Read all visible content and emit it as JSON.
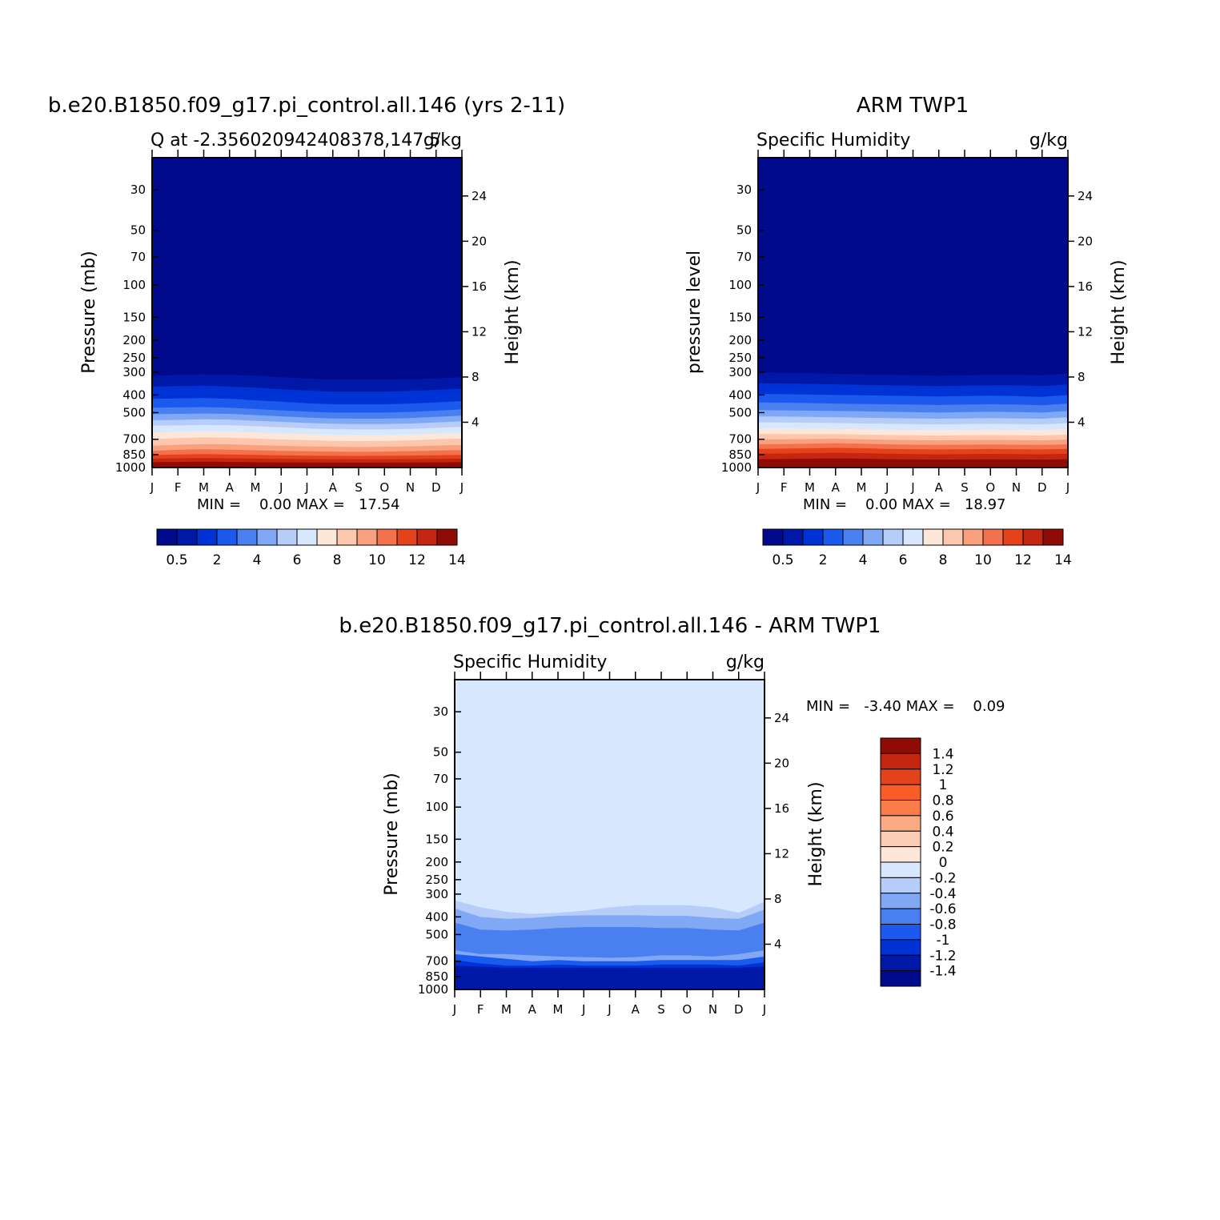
{
  "figure": {
    "pressure_axis_ticks": [
      30,
      50,
      70,
      100,
      150,
      200,
      250,
      300,
      400,
      500,
      700,
      850,
      1000
    ],
    "height_axis_ticks": [
      4,
      8,
      12,
      16,
      20,
      24
    ],
    "month_labels": [
      "J",
      "F",
      "M",
      "A",
      "M",
      "J",
      "J",
      "A",
      "S",
      "O",
      "N",
      "D",
      "J"
    ],
    "height_axis_label": "Height (km)"
  },
  "panels": [
    {
      "title": "b.e20.B1850.f09_g17.pi_control.all.146 (yrs 2-11)",
      "left_label": "Q at -2.356020942408378,147.5",
      "right_label": "g/kg",
      "ylabel": "Pressure (mb)",
      "stats_text": "MIN =    0.00 MAX =   17.54",
      "colorbar_labels": [
        "0.5",
        "2",
        "4",
        "6",
        "8",
        "10",
        "12",
        "14"
      ]
    },
    {
      "title": "ARM TWP1",
      "left_label": "Specific Humidity",
      "right_label": "g/kg",
      "ylabel": "pressure level",
      "stats_text": "MIN =    0.00 MAX =   18.97",
      "colorbar_labels": [
        "0.5",
        "2",
        "4",
        "6",
        "8",
        "10",
        "12",
        "14"
      ]
    },
    {
      "title": "b.e20.B1850.f09_g17.pi_control.all.146 - ARM TWP1",
      "left_label": "Specific Humidity",
      "right_label": "g/kg",
      "ylabel": "Pressure (mb)",
      "stats_text": "MIN =   -3.40 MAX =    0.09",
      "colorbar_labels": [
        "1.4",
        "1.2",
        "1",
        "0.8",
        "0.6",
        "0.4",
        "0.2",
        "0",
        "-0.2",
        "-0.4",
        "-0.6",
        "-0.8",
        "-1",
        "-1.2",
        "-1.4"
      ]
    }
  ],
  "colors": {
    "humidity_fill": [
      "#000a8b",
      "#0018a8",
      "#0033d6",
      "#1b5aec",
      "#4a7ff0",
      "#80a8f5",
      "#b6cdfa",
      "#d6e7fe",
      "#fde7d8",
      "#fcc7ad",
      "#f9a07f",
      "#f4714d",
      "#e4421b",
      "#c42612",
      "#8f0b06"
    ],
    "diff_fill": [
      "#8f0b06",
      "#c42612",
      "#e4421b",
      "#f95c25",
      "#fa7c49",
      "#fcaa84",
      "#fccdb5",
      "#fde7d8",
      "#d6e7fe",
      "#b6cdfa",
      "#80a8f5",
      "#4a7ff0",
      "#1b5aec",
      "#0033d6",
      "#0018a8",
      "#000a8b"
    ]
  },
  "chart_data": [
    {
      "type": "heatmap",
      "title": "b.e20.B1850.f09_g17.pi_control.all.146 (yrs 2-11)",
      "variable": "Q at -2.356020942408378,147.5",
      "units": "g/kg",
      "x": [
        "J",
        "F",
        "M",
        "A",
        "M",
        "J",
        "J",
        "A",
        "S",
        "O",
        "N",
        "D",
        "J"
      ],
      "ylabel": "Pressure (mb)",
      "y_right_label": "Height (km)",
      "ylim": [
        1000,
        20
      ],
      "y_scale": "log",
      "contour_levels": [
        0.5,
        1,
        2,
        3,
        4,
        5,
        6,
        7,
        8,
        9,
        10,
        11,
        12,
        13,
        14
      ],
      "min": 0.0,
      "max": 17.54,
      "contour_pressure_mb": [
        [
          315,
          310,
          308,
          310,
          314,
          320,
          325,
          330,
          330,
          330,
          328,
          325,
          320
        ],
        [
          360,
          358,
          356,
          360,
          365,
          372,
          378,
          384,
          384,
          384,
          380,
          375,
          370
        ],
        [
          420,
          418,
          416,
          420,
          428,
          436,
          444,
          450,
          450,
          450,
          446,
          440,
          432
        ],
        [
          470,
          468,
          466,
          470,
          478,
          486,
          494,
          500,
          500,
          500,
          496,
          488,
          480
        ],
        [
          510,
          508,
          506,
          508,
          516,
          524,
          532,
          538,
          540,
          540,
          536,
          528,
          520
        ],
        [
          550,
          548,
          544,
          546,
          554,
          562,
          570,
          576,
          578,
          578,
          574,
          566,
          558
        ],
        [
          590,
          588,
          584,
          586,
          594,
          602,
          610,
          616,
          618,
          618,
          614,
          606,
          598
        ],
        [
          640,
          636,
          632,
          634,
          642,
          650,
          656,
          662,
          664,
          664,
          660,
          652,
          646
        ],
        [
          700,
          690,
          684,
          686,
          694,
          702,
          708,
          714,
          716,
          714,
          710,
          700,
          694
        ],
        [
          760,
          750,
          744,
          746,
          754,
          760,
          766,
          770,
          772,
          770,
          766,
          758,
          752
        ],
        [
          810,
          800,
          795,
          798,
          805,
          810,
          814,
          818,
          820,
          818,
          814,
          808,
          802
        ],
        [
          855,
          848,
          845,
          848,
          853,
          857,
          860,
          863,
          864,
          862,
          860,
          856,
          852
        ],
        [
          895,
          890,
          888,
          890,
          894,
          897,
          900,
          902,
          903,
          902,
          900,
          897,
          894
        ],
        [
          935,
          932,
          930,
          932,
          935,
          937,
          939,
          940,
          941,
          940,
          938,
          936,
          934
        ],
        [
          975,
          972,
          972,
          972,
          974,
          975,
          976,
          977,
          977,
          977,
          976,
          975,
          974
        ]
      ]
    },
    {
      "type": "heatmap",
      "title": "ARM TWP1",
      "variable": "Specific Humidity",
      "units": "g/kg",
      "x": [
        "J",
        "F",
        "M",
        "A",
        "M",
        "J",
        "J",
        "A",
        "S",
        "O",
        "N",
        "D",
        "J"
      ],
      "ylabel": "pressure level",
      "y_right_label": "Height (km)",
      "ylim": [
        1000,
        20
      ],
      "y_scale": "log",
      "contour_levels": [
        0.5,
        1,
        2,
        3,
        4,
        5,
        6,
        7,
        8,
        9,
        10,
        11,
        12,
        13,
        14
      ],
      "min": 0.0,
      "max": 18.97,
      "contour_pressure_mb": [
        [
          300,
          302,
          304,
          306,
          308,
          310,
          312,
          314,
          312,
          310,
          310,
          312,
          305
        ],
        [
          345,
          346,
          348,
          350,
          352,
          354,
          356,
          358,
          356,
          354,
          354,
          358,
          350
        ],
        [
          395,
          396,
          398,
          400,
          402,
          404,
          406,
          408,
          406,
          404,
          406,
          410,
          400
        ],
        [
          440,
          441,
          443,
          446,
          448,
          450,
          452,
          454,
          452,
          450,
          452,
          456,
          446
        ],
        [
          485,
          486,
          488,
          490,
          492,
          495,
          497,
          500,
          497,
          495,
          497,
          500,
          490
        ],
        [
          525,
          526,
          528,
          530,
          533,
          536,
          538,
          540,
          538,
          536,
          538,
          540,
          530
        ],
        [
          565,
          566,
          568,
          570,
          573,
          576,
          578,
          580,
          578,
          576,
          578,
          580,
          570
        ],
        [
          610,
          611,
          612,
          614,
          617,
          620,
          622,
          624,
          622,
          620,
          622,
          624,
          615
        ],
        [
          655,
          656,
          656,
          656,
          660,
          664,
          666,
          668,
          666,
          664,
          666,
          668,
          660
        ],
        [
          700,
          700,
          698,
          696,
          700,
          705,
          708,
          710,
          708,
          706,
          708,
          710,
          702
        ],
        [
          745,
          744,
          740,
          736,
          740,
          746,
          750,
          752,
          750,
          748,
          750,
          752,
          746
        ],
        [
          790,
          788,
          784,
          780,
          784,
          790,
          794,
          796,
          794,
          792,
          794,
          796,
          790
        ],
        [
          840,
          838,
          834,
          830,
          834,
          840,
          844,
          846,
          844,
          842,
          844,
          846,
          840
        ],
        [
          900,
          898,
          895,
          892,
          895,
          900,
          903,
          905,
          903,
          901,
          903,
          905,
          900
        ],
        [
          950,
          948,
          946,
          944,
          946,
          950,
          952,
          953,
          952,
          951,
          952,
          953,
          950
        ]
      ]
    },
    {
      "type": "heatmap",
      "title": "b.e20.B1850.f09_g17.pi_control.all.146 - ARM TWP1",
      "variable": "Specific Humidity",
      "units": "g/kg",
      "x": [
        "J",
        "F",
        "M",
        "A",
        "M",
        "J",
        "J",
        "A",
        "S",
        "O",
        "N",
        "D",
        "J"
      ],
      "ylabel": "Pressure (mb)",
      "y_right_label": "Height (km)",
      "ylim": [
        1000,
        20
      ],
      "y_scale": "log",
      "contour_levels": [
        -1.4,
        -1.2,
        -1,
        -0.8,
        -0.6,
        -0.4,
        -0.2,
        0,
        0.2,
        0.4,
        0.6,
        0.8,
        1,
        1.2,
        1.4
      ],
      "min": -3.4,
      "max": 0.09,
      "contour_pressure_mb": [
        [
          325,
          355,
          375,
          385,
          380,
          370,
          355,
          345,
          345,
          345,
          355,
          380,
          330
        ],
        [
          360,
          400,
          410,
          405,
          395,
          392,
          392,
          392,
          395,
          395,
          405,
          410,
          365
        ],
        [
          430,
          470,
          475,
          470,
          460,
          455,
          455,
          455,
          460,
          460,
          470,
          475,
          430
        ],
        [
          610,
          640,
          640,
          650,
          660,
          665,
          670,
          665,
          650,
          650,
          660,
          640,
          610
        ],
        [
          640,
          660,
          680,
          700,
          690,
          700,
          700,
          700,
          690,
          690,
          690,
          690,
          660
        ],
        [
          690,
          720,
          740,
          740,
          730,
          740,
          740,
          740,
          730,
          730,
          730,
          740,
          710
        ],
        [
          740,
          750,
          760,
          760,
          760,
          760,
          760,
          760,
          760,
          760,
          760,
          760,
          750
        ]
      ],
      "stats_position": "right"
    }
  ]
}
